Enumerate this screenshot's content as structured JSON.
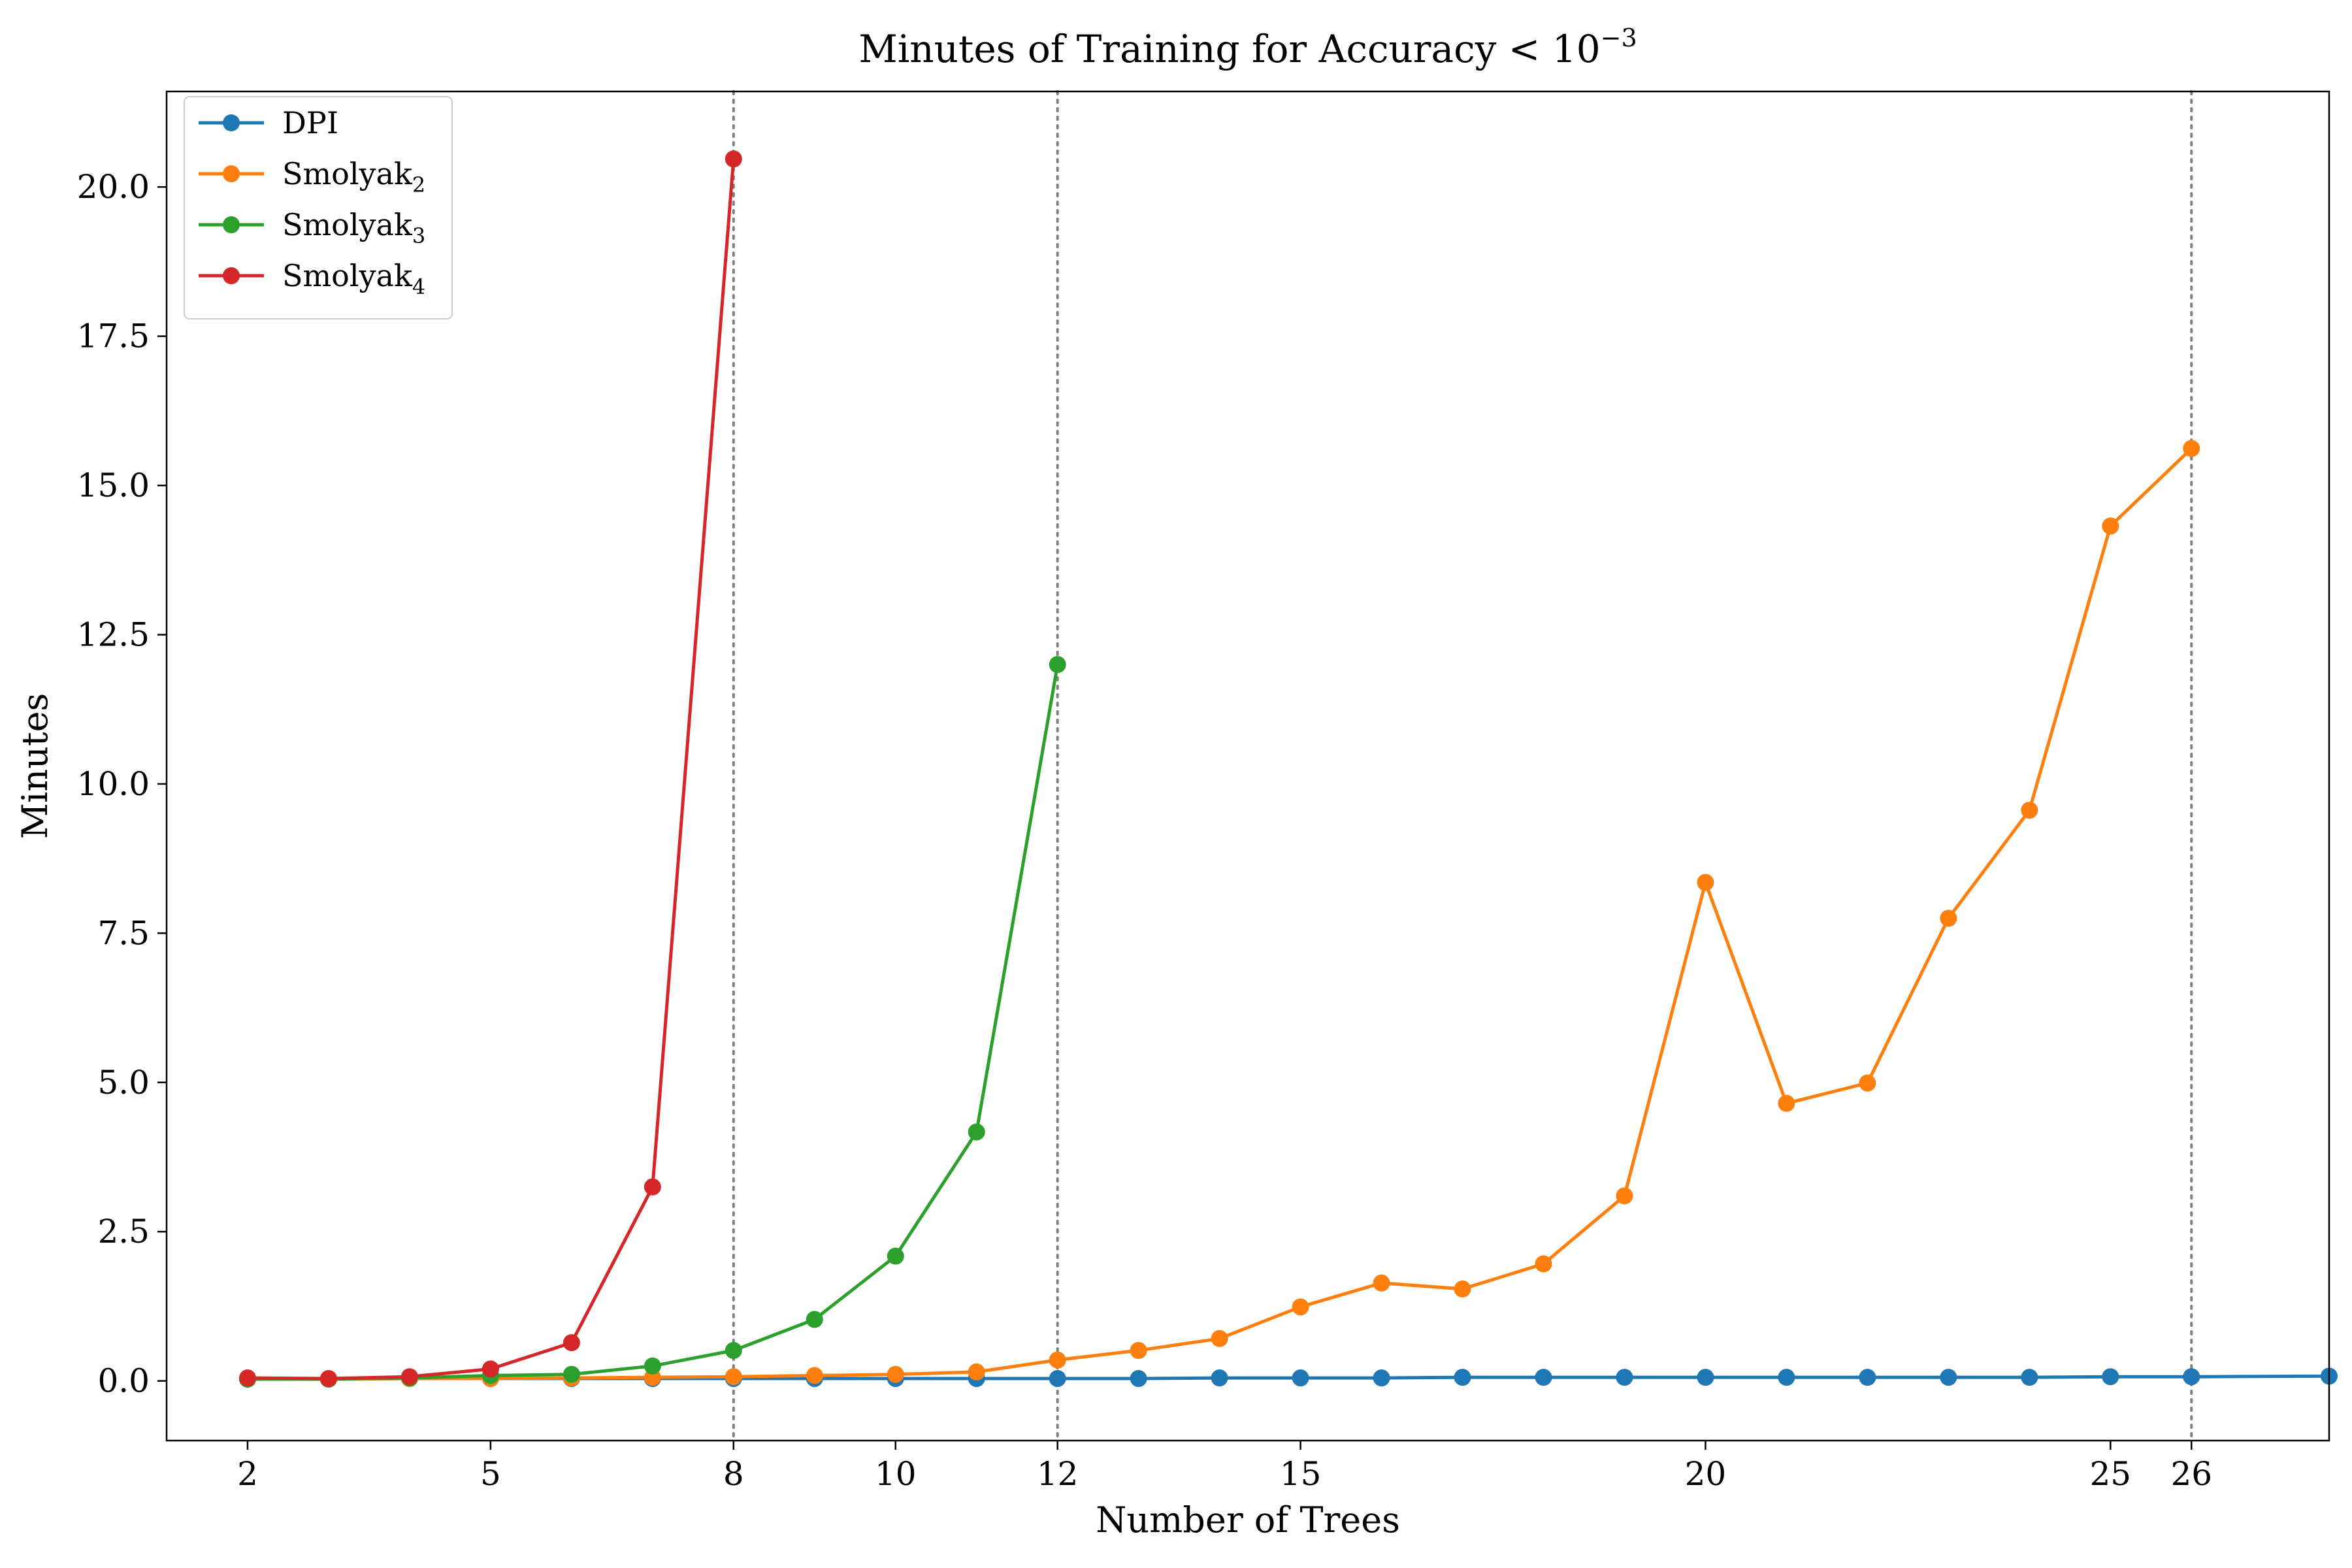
{
  "chart_data": {
    "type": "line",
    "title_main": "Minutes of Training for Accuracy < 10",
    "title_exponent": "−3",
    "xlabel": "Number of Trees",
    "ylabel": "Minutes",
    "xlim": [
      1,
      27.7
    ],
    "ylim": [
      -1.0,
      21.6
    ],
    "xticks": [
      2,
      5,
      8,
      10,
      12,
      15,
      20,
      25,
      26
    ],
    "yticks": [
      0.0,
      2.5,
      5.0,
      7.5,
      10.0,
      12.5,
      15.0,
      17.5,
      20.0
    ],
    "ytick_labels": [
      "0.0",
      "2.5",
      "5.0",
      "7.5",
      "10.0",
      "12.5",
      "15.0",
      "17.5",
      "20.0"
    ],
    "vlines": [
      8,
      12,
      26
    ],
    "grid": false,
    "legend_position": "top-left",
    "series": [
      {
        "name": "DPI",
        "subscript": "",
        "color": "#1f77b4",
        "x": [
          2,
          3,
          4,
          5,
          6,
          7,
          8,
          9,
          10,
          11,
          12,
          13,
          14,
          15,
          16,
          17,
          18,
          19,
          20,
          21,
          22,
          23,
          24,
          25,
          26,
          27.7
        ],
        "y": [
          0.03,
          0.03,
          0.04,
          0.04,
          0.04,
          0.04,
          0.04,
          0.04,
          0.04,
          0.04,
          0.04,
          0.04,
          0.05,
          0.05,
          0.05,
          0.06,
          0.06,
          0.06,
          0.06,
          0.06,
          0.06,
          0.06,
          0.06,
          0.07,
          0.07,
          0.08
        ]
      },
      {
        "name": "Smolyak",
        "subscript": "2",
        "color": "#ff7f0e",
        "x": [
          2,
          3,
          4,
          5,
          6,
          7,
          8,
          9,
          10,
          11,
          12,
          13,
          14,
          15,
          16,
          17,
          18,
          19,
          20,
          21,
          22,
          23,
          24,
          25,
          26
        ],
        "y": [
          0.03,
          0.03,
          0.04,
          0.04,
          0.05,
          0.06,
          0.07,
          0.09,
          0.11,
          0.15,
          0.35,
          0.51,
          0.71,
          1.24,
          1.64,
          1.54,
          1.96,
          3.1,
          8.35,
          4.65,
          4.99,
          7.75,
          9.56,
          14.32,
          15.62
        ]
      },
      {
        "name": "Smolyak",
        "subscript": "3",
        "color": "#2ca02c",
        "x": [
          2,
          3,
          4,
          5,
          6,
          7,
          8,
          9,
          10,
          11,
          12
        ],
        "y": [
          0.03,
          0.03,
          0.05,
          0.09,
          0.11,
          0.25,
          0.51,
          1.03,
          2.09,
          4.17,
          12.0
        ]
      },
      {
        "name": "Smolyak",
        "subscript": "4",
        "color": "#d62728",
        "x": [
          2,
          3,
          4,
          5,
          6,
          7,
          8
        ],
        "y": [
          0.05,
          0.04,
          0.07,
          0.2,
          0.64,
          3.25,
          20.47
        ]
      }
    ]
  }
}
